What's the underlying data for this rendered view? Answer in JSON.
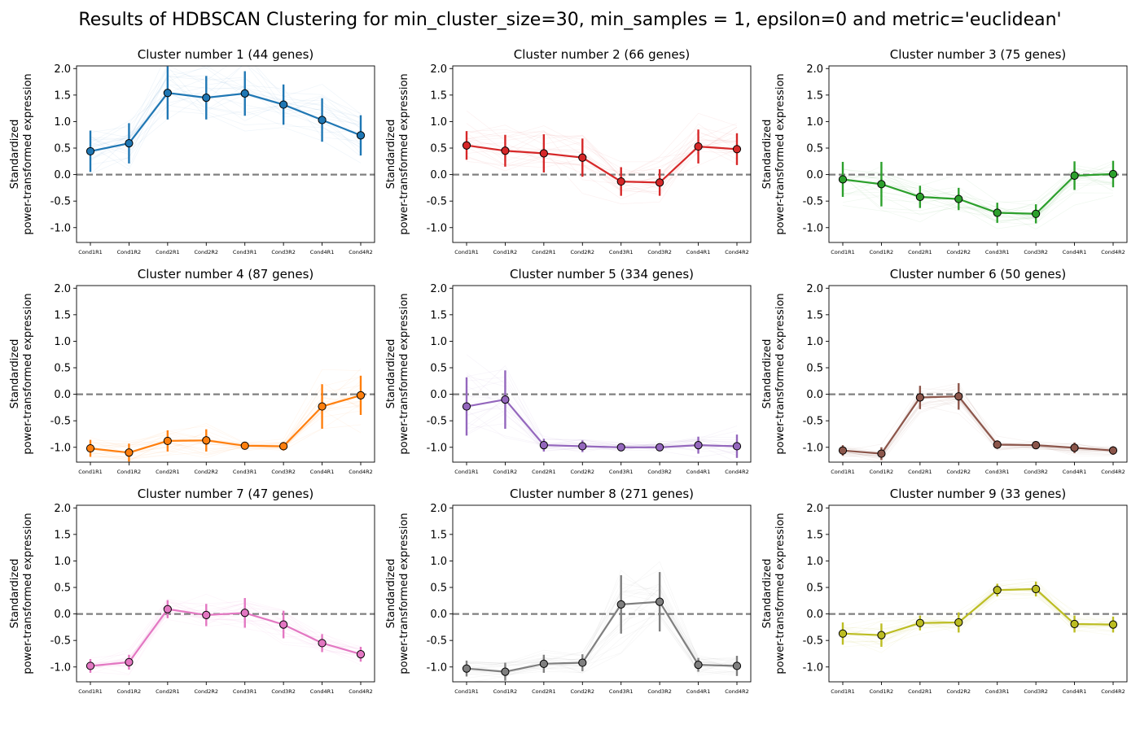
{
  "figure": {
    "suptitle": "Results of HDBSCAN Clustering for min_cluster_size=30, min_samples = 1, epsilon=0 and metric='euclidean'"
  },
  "chart_data": [
    {
      "type": "line",
      "title": "Cluster number 1 (44 genes)",
      "ylabel": [
        "Standardized",
        "power-transformed expression"
      ],
      "categories": [
        "Cond1R1",
        "Cond1R2",
        "Cond2R1",
        "Cond2R2",
        "Cond3R1",
        "Cond3R2",
        "Cond4R1",
        "Cond4R2"
      ],
      "yticks": [
        2.0,
        1.5,
        1.0,
        0.5,
        0.0,
        -0.5,
        -1.0
      ],
      "ylim": [
        -1.28,
        2.05
      ],
      "color": "#1f77b4",
      "values": [
        0.44,
        0.59,
        1.54,
        1.45,
        1.53,
        1.32,
        1.03,
        0.74
      ],
      "error": [
        0.39,
        0.38,
        0.5,
        0.41,
        0.42,
        0.38,
        0.41,
        0.38
      ],
      "reference_line": 0
    },
    {
      "type": "line",
      "title": "Cluster number 2 (66 genes)",
      "ylabel": [
        "Standardized",
        "power-transformed expression"
      ],
      "categories": [
        "Cond1R1",
        "Cond1R2",
        "Cond2R1",
        "Cond2R2",
        "Cond3R1",
        "Cond3R2",
        "Cond4R1",
        "Cond4R2"
      ],
      "yticks": [
        2.0,
        1.5,
        1.0,
        0.5,
        0.0,
        -0.5,
        -1.0
      ],
      "ylim": [
        -1.28,
        2.05
      ],
      "color": "#d62728",
      "values": [
        0.55,
        0.45,
        0.4,
        0.32,
        -0.13,
        -0.15,
        0.53,
        0.48
      ],
      "error": [
        0.27,
        0.3,
        0.36,
        0.36,
        0.27,
        0.25,
        0.32,
        0.3
      ],
      "reference_line": 0
    },
    {
      "type": "line",
      "title": "Cluster number 3 (75 genes)",
      "ylabel": [
        "Standardized",
        "power-transformed expression"
      ],
      "categories": [
        "Cond1R1",
        "Cond1R2",
        "Cond2R1",
        "Cond2R2",
        "Cond3R1",
        "Cond3R2",
        "Cond4R1",
        "Cond4R2"
      ],
      "yticks": [
        2.0,
        1.5,
        1.0,
        0.5,
        0.0,
        -0.5,
        -1.0
      ],
      "ylim": [
        -1.28,
        2.05
      ],
      "color": "#2ca02c",
      "values": [
        -0.09,
        -0.18,
        -0.42,
        -0.46,
        -0.72,
        -0.74,
        -0.02,
        0.01
      ],
      "error": [
        0.33,
        0.42,
        0.21,
        0.21,
        0.19,
        0.18,
        0.27,
        0.25
      ],
      "reference_line": 0
    },
    {
      "type": "line",
      "title": "Cluster number 4 (87 genes)",
      "ylabel": [
        "Standardized",
        "power-transformed expression"
      ],
      "categories": [
        "Cond1R1",
        "Cond1R2",
        "Cond2R1",
        "Cond2R2",
        "Cond3R1",
        "Cond3R2",
        "Cond4R1",
        "Cond4R2"
      ],
      "yticks": [
        2.0,
        1.5,
        1.0,
        0.5,
        0.0,
        -0.5,
        -1.0
      ],
      "ylim": [
        -1.28,
        2.05
      ],
      "color": "#ff7f0e",
      "values": [
        -1.02,
        -1.1,
        -0.88,
        -0.87,
        -0.97,
        -0.98,
        -0.23,
        -0.02
      ],
      "error": [
        0.16,
        0.17,
        0.2,
        0.21,
        0.06,
        0.08,
        0.42,
        0.37
      ],
      "reference_line": 0
    },
    {
      "type": "line",
      "title": "Cluster number 5 (334 genes)",
      "ylabel": [
        "Standardized",
        "power-transformed expression"
      ],
      "categories": [
        "Cond1R1",
        "Cond1R2",
        "Cond2R1",
        "Cond2R2",
        "Cond3R1",
        "Cond3R2",
        "Cond4R1",
        "Cond4R2"
      ],
      "yticks": [
        2.0,
        1.5,
        1.0,
        0.5,
        0.0,
        -0.5,
        -1.0
      ],
      "ylim": [
        -1.28,
        2.05
      ],
      "color": "#9467bd",
      "values": [
        -0.23,
        -0.1,
        -0.96,
        -0.98,
        -1.0,
        -1.0,
        -0.96,
        -0.98
      ],
      "error": [
        0.55,
        0.55,
        0.12,
        0.11,
        0.07,
        0.07,
        0.16,
        0.22
      ],
      "reference_line": 0
    },
    {
      "type": "line",
      "title": "Cluster number 6 (50 genes)",
      "ylabel": [
        "Standardized",
        "power-transformed expression"
      ],
      "categories": [
        "Cond1R1",
        "Cond1R2",
        "Cond2R1",
        "Cond2R2",
        "Cond3R1",
        "Cond3R2",
        "Cond4R1",
        "Cond4R2"
      ],
      "yticks": [
        2.0,
        1.5,
        1.0,
        0.5,
        0.0,
        -0.5,
        -1.0
      ],
      "ylim": [
        -1.28,
        2.05
      ],
      "color": "#8c564b",
      "values": [
        -1.06,
        -1.12,
        -0.06,
        -0.04,
        -0.95,
        -0.96,
        -1.01,
        -1.06
      ],
      "error": [
        0.1,
        0.12,
        0.22,
        0.25,
        0.08,
        0.06,
        0.1,
        0.08
      ],
      "reference_line": 0
    },
    {
      "type": "line",
      "title": "Cluster number 7 (47 genes)",
      "ylabel": [
        "Standardized",
        "power-transformed expression"
      ],
      "categories": [
        "Cond1R1",
        "Cond1R2",
        "Cond2R1",
        "Cond2R2",
        "Cond3R1",
        "Cond3R2",
        "Cond4R1",
        "Cond4R2"
      ],
      "yticks": [
        2.0,
        1.5,
        1.0,
        0.5,
        0.0,
        -0.5,
        -1.0
      ],
      "ylim": [
        -1.28,
        2.05
      ],
      "color": "#e377c2",
      "values": [
        -0.98,
        -0.91,
        0.09,
        -0.02,
        0.02,
        -0.2,
        -0.55,
        -0.76
      ],
      "error": [
        0.13,
        0.14,
        0.17,
        0.21,
        0.28,
        0.26,
        0.17,
        0.14
      ],
      "reference_line": 0
    },
    {
      "type": "line",
      "title": "Cluster number 8 (271 genes)",
      "ylabel": [
        "Standardized",
        "power-transformed expression"
      ],
      "categories": [
        "Cond1R1",
        "Cond1R2",
        "Cond2R1",
        "Cond2R2",
        "Cond3R1",
        "Cond3R2",
        "Cond4R1",
        "Cond4R2"
      ],
      "yticks": [
        2.0,
        1.5,
        1.0,
        0.5,
        0.0,
        -0.5,
        -1.0
      ],
      "ylim": [
        -1.28,
        2.05
      ],
      "color": "#7f7f7f",
      "values": [
        -1.03,
        -1.09,
        -0.94,
        -0.92,
        0.18,
        0.23,
        -0.96,
        -0.98
      ],
      "error": [
        0.15,
        0.17,
        0.17,
        0.16,
        0.55,
        0.56,
        0.13,
        0.19
      ],
      "reference_line": 0
    },
    {
      "type": "line",
      "title": "Cluster number 9 (33 genes)",
      "ylabel": [
        "Standardized",
        "power-transformed expression"
      ],
      "categories": [
        "Cond1R1",
        "Cond1R2",
        "Cond2R1",
        "Cond2R2",
        "Cond3R1",
        "Cond3R2",
        "Cond4R1",
        "Cond4R2"
      ],
      "yticks": [
        2.0,
        1.5,
        1.0,
        0.5,
        0.0,
        -0.5,
        -1.0
      ],
      "ylim": [
        -1.28,
        2.05
      ],
      "color": "#bcbd22",
      "values": [
        -0.37,
        -0.4,
        -0.17,
        -0.16,
        0.45,
        0.47,
        -0.19,
        -0.2
      ],
      "error": [
        0.21,
        0.22,
        0.14,
        0.19,
        0.12,
        0.14,
        0.16,
        0.15
      ],
      "reference_line": 0
    }
  ]
}
